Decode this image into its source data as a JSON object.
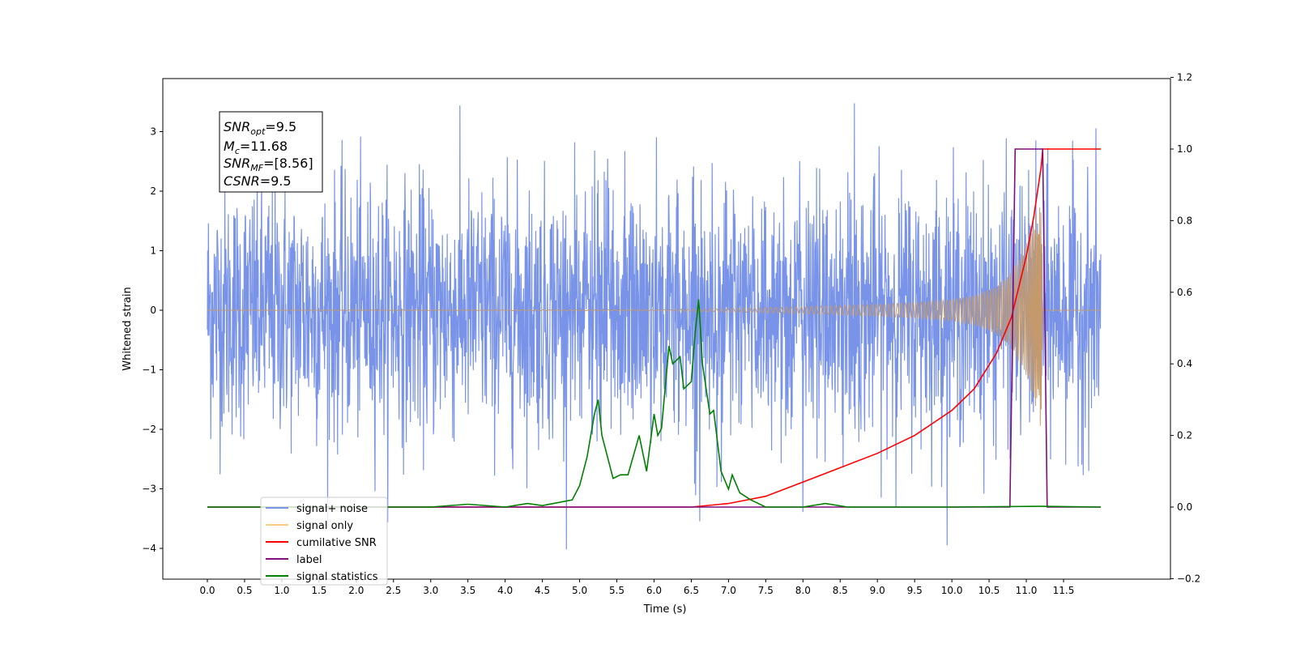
{
  "chart_data": {
    "type": "line",
    "xlabel": "Time (s)",
    "ylabel": "Whitened strain",
    "xlim": [
      -0.5,
      12.7
    ],
    "ylim": [
      -4.5,
      3.9
    ],
    "y2lim": [
      -0.2,
      1.2
    ],
    "x_ticks": [
      "0.0",
      "0.5",
      "1.0",
      "1.5",
      "2.0",
      "2.5",
      "3.0",
      "3.5",
      "4.0",
      "4.5",
      "5.0",
      "5.5",
      "6.0",
      "6.5",
      "7.0",
      "7.5",
      "8.0",
      "8.5",
      "9.0",
      "9.5",
      "10.0",
      "10.5",
      "11.0",
      "11.5"
    ],
    "y_ticks": [
      "3",
      "2",
      "1",
      "0",
      "−1",
      "−2",
      "−3",
      "−4"
    ],
    "y2_ticks": [
      "1.2",
      "1.0",
      "0.8",
      "0.6",
      "0.4",
      "0.2",
      "0.0",
      "−0.2"
    ],
    "annotation": {
      "lines": [
        {
          "base": "SNR",
          "sub": "opt",
          "rest": "=9.5"
        },
        {
          "base": "M",
          "sub": "c",
          "rest": "=11.68"
        },
        {
          "base": "SNR",
          "sub": "MF",
          "rest": "=[8.56]"
        },
        {
          "base": "CSNR",
          "sub": "",
          "rest": "=9.5"
        }
      ]
    },
    "legend": {
      "placement": "lower-left",
      "entries": [
        {
          "name": "signal+ noise",
          "color": "#7893e8"
        },
        {
          "name": "signal only",
          "color": "#ffcc80"
        },
        {
          "name": "cumilative SNR",
          "color": "#ff0000"
        },
        {
          "name": "label",
          "color": "#7b0f7b"
        },
        {
          "name": "signal statistics",
          "color": "#008000"
        }
      ]
    },
    "series": [
      {
        "name": "signal+ noise",
        "axis": "left",
        "color": "#7893e8",
        "description_values": {
          "x_start": 0.0,
          "x_end": 12.0,
          "mean": 0.0,
          "typical_min": -2.5,
          "typical_max": 2.5,
          "peak_max": 3.55,
          "peak_min": -4.1
        }
      },
      {
        "name": "signal only",
        "axis": "left",
        "color": "#c49a6c",
        "envelope": {
          "x": [
            0.0,
            6.0,
            7.0,
            8.0,
            9.0,
            9.5,
            10.0,
            10.3,
            10.6,
            10.8,
            11.0,
            11.1,
            11.2,
            11.22,
            12.0
          ],
          "amp": [
            0.0,
            0.01,
            0.03,
            0.06,
            0.1,
            0.13,
            0.18,
            0.25,
            0.4,
            0.65,
            1.1,
            1.5,
            2.0,
            0.0,
            0.0
          ]
        }
      },
      {
        "name": "cumilative SNR",
        "axis": "right",
        "color": "#ff0000",
        "x": [
          0.0,
          6.5,
          7.0,
          7.5,
          8.0,
          8.5,
          9.0,
          9.5,
          10.0,
          10.3,
          10.6,
          10.8,
          11.0,
          11.1,
          11.2,
          11.22,
          12.0
        ],
        "values": [
          0.0,
          0.0,
          0.01,
          0.03,
          0.07,
          0.11,
          0.15,
          0.2,
          0.27,
          0.33,
          0.43,
          0.53,
          0.7,
          0.81,
          0.95,
          1.0,
          1.0
        ]
      },
      {
        "name": "label",
        "axis": "right",
        "color": "#7b0f7b",
        "x": [
          0.0,
          10.78,
          10.85,
          11.22,
          11.28,
          12.0
        ],
        "values": [
          0.0,
          0.0,
          1.0,
          1.0,
          0.0,
          0.0
        ]
      },
      {
        "name": "signal statistics",
        "axis": "right",
        "color": "#008000",
        "x": [
          0.0,
          3.0,
          3.5,
          4.0,
          4.3,
          4.5,
          4.9,
          5.0,
          5.1,
          5.2,
          5.25,
          5.3,
          5.45,
          5.55,
          5.65,
          5.8,
          5.9,
          6.0,
          6.05,
          6.1,
          6.2,
          6.25,
          6.35,
          6.4,
          6.5,
          6.55,
          6.6,
          6.65,
          6.75,
          6.8,
          6.9,
          7.0,
          7.05,
          7.15,
          7.3,
          7.5,
          8.0,
          8.3,
          8.6,
          10.0,
          11.2,
          12.0
        ],
        "values": [
          0.0,
          0.0,
          0.008,
          0.0,
          0.01,
          0.004,
          0.02,
          0.06,
          0.14,
          0.26,
          0.3,
          0.2,
          0.08,
          0.09,
          0.09,
          0.2,
          0.1,
          0.26,
          0.2,
          0.22,
          0.45,
          0.4,
          0.42,
          0.33,
          0.35,
          0.48,
          0.58,
          0.4,
          0.26,
          0.27,
          0.1,
          0.05,
          0.09,
          0.04,
          0.02,
          0.0,
          0.0,
          0.01,
          0.0,
          0.0,
          0.002,
          0.0
        ]
      }
    ]
  }
}
